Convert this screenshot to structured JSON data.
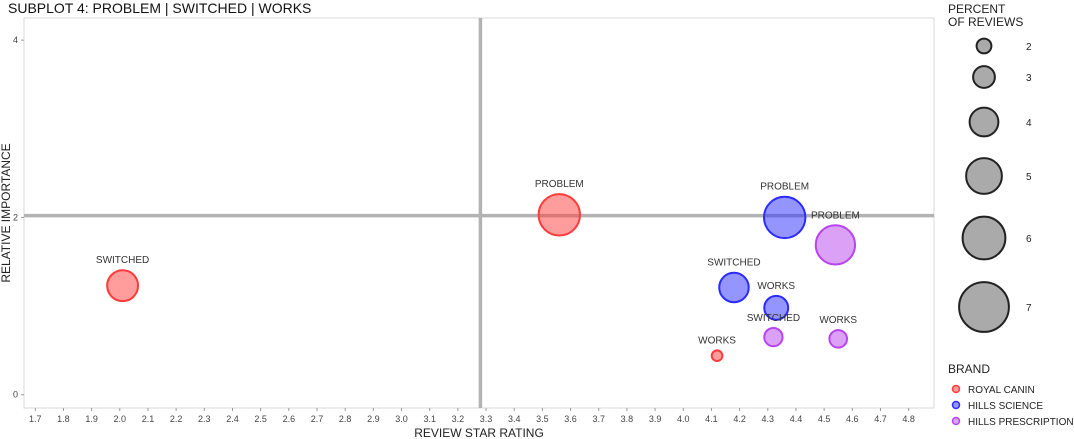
{
  "chart_data": {
    "type": "scatter",
    "title": "SUBPLOT 4: PROBLEM | SWITCHED | WORKS",
    "xlabel": "REVIEW STAR RATING",
    "ylabel": "RELATIVE IMPORTANCE",
    "xlim": [
      1.66,
      4.89
    ],
    "ylim": [
      -0.15,
      4.25
    ],
    "x_ticks": [
      "1.7",
      "1.8",
      "1.9",
      "2.0",
      "2.1",
      "2.2",
      "2.3",
      "2.4",
      "2.5",
      "2.6",
      "2.7",
      "2.8",
      "2.9",
      "3.0",
      "3.1",
      "3.2",
      "3.3",
      "3.4",
      "3.5",
      "3.6",
      "3.7",
      "3.8",
      "3.9",
      "4.0",
      "4.1",
      "4.2",
      "4.3",
      "4.4",
      "4.5",
      "4.6",
      "4.7",
      "4.8"
    ],
    "y_ticks": [
      "0",
      "2",
      "4"
    ],
    "grid": false,
    "reference_lines": {
      "x": 3.28,
      "y": 2.02
    },
    "size_legend": {
      "title_line1": "PERCENT",
      "title_line2": "OF REVIEWS",
      "values": [
        2,
        3,
        4,
        5,
        6,
        7
      ]
    },
    "color_legend": {
      "title": "BRAND",
      "placement": "right"
    },
    "series": [
      {
        "name": "ROYAL CANIN",
        "color": "#ff3b3b",
        "points": [
          {
            "label": "PROBLEM",
            "x": 3.56,
            "y": 2.03,
            "size": 5.8
          },
          {
            "label": "SWITCHED",
            "x": 2.01,
            "y": 1.23,
            "size": 4.3
          },
          {
            "label": "WORKS",
            "x": 4.12,
            "y": 0.44,
            "size": 1.4
          }
        ]
      },
      {
        "name": "HILLS SCIENCE",
        "color": "#2b2bff",
        "points": [
          {
            "label": "PROBLEM",
            "x": 4.36,
            "y": 2.0,
            "size": 5.8
          },
          {
            "label": "SWITCHED",
            "x": 4.18,
            "y": 1.21,
            "size": 4.1
          },
          {
            "label": "WORKS",
            "x": 4.33,
            "y": 0.98,
            "size": 3.3
          }
        ]
      },
      {
        "name": "HILLS PRESCRIPTION",
        "color": "#b844f0",
        "points": [
          {
            "label": "PROBLEM",
            "x": 4.54,
            "y": 1.69,
            "size": 5.5
          },
          {
            "label": "SWITCHED",
            "x": 4.32,
            "y": 0.65,
            "size": 2.5
          },
          {
            "label": "WORKS",
            "x": 4.55,
            "y": 0.63,
            "size": 2.4
          }
        ]
      }
    ]
  }
}
